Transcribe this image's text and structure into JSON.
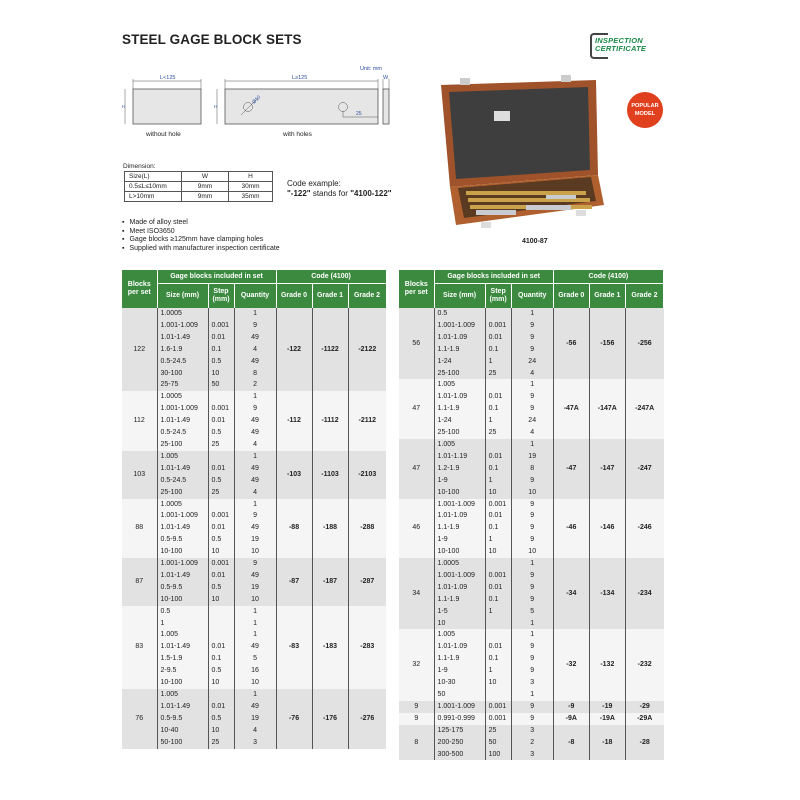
{
  "page": {
    "title": "STEEL GAGE BLOCK SETS",
    "unit": "Unit: mm",
    "diagram": {
      "l_small": "L<125",
      "l_large": "L≥125",
      "h": "H",
      "w": "W",
      "hole_dia": "Ø10",
      "hole_offset": "25",
      "caption_left": "without hole",
      "caption_right": "with holes"
    },
    "dimension": {
      "label": "Dimension:",
      "headers": [
        "Size(L)",
        "W",
        "H"
      ],
      "rows": [
        [
          "0.5≤L≤10mm",
          "9mm",
          "30mm"
        ],
        [
          "L>10mm",
          "9mm",
          "35mm"
        ]
      ]
    },
    "code_example": {
      "line1": "Code example:",
      "code": "\"-122\"",
      "middle": " stands for ",
      "full": "\"4100-122\""
    },
    "features": [
      "Made of alloy steel",
      "Meet ISO3650",
      "Gage blocks ≥125mm have clamping holes",
      "Supplied with manufacturer inspection certificate"
    ],
    "logo": {
      "line1": "INSPECTION",
      "line2": "CERTIFICATE"
    },
    "badge": {
      "line1": "POPULAR",
      "line2": "MODEL"
    },
    "product_model": "4100-87",
    "colors": {
      "header_green": "#3b8a3f",
      "badge_red": "#e0401e",
      "logo_green": "#1a8a4a"
    }
  },
  "table_headers": {
    "blocks": "Blocks per set",
    "included": "Gage blocks included in set",
    "code": "Code (4100)",
    "size": "Size (mm)",
    "step": "Step (mm)",
    "quantity": "Quantity",
    "grade0": "Grade 0",
    "grade1": "Grade 1",
    "grade2": "Grade 2"
  },
  "tables": [
    {
      "sets": [
        {
          "blocks": "122",
          "items": [
            [
              "1.0005",
              "",
              "1"
            ],
            [
              "1.001-1.009",
              "0.001",
              "9"
            ],
            [
              "1.01-1.49",
              "0.01",
              "49"
            ],
            [
              "1.6-1.9",
              "0.1",
              "4"
            ],
            [
              "0.5-24.5",
              "0.5",
              "49"
            ],
            [
              "30-100",
              "10",
              "8"
            ],
            [
              "25-75",
              "50",
              "2"
            ]
          ],
          "codes": [
            "-122",
            "-1122",
            "-2122"
          ]
        },
        {
          "blocks": "112",
          "items": [
            [
              "1.0005",
              "",
              "1"
            ],
            [
              "1.001-1.009",
              "0.001",
              "9"
            ],
            [
              "1.01-1.49",
              "0.01",
              "49"
            ],
            [
              "0.5-24.5",
              "0.5",
              "49"
            ],
            [
              "25-100",
              "25",
              "4"
            ]
          ],
          "codes": [
            "-112",
            "-1112",
            "-2112"
          ]
        },
        {
          "blocks": "103",
          "items": [
            [
              "1.005",
              "",
              "1"
            ],
            [
              "1.01-1.49",
              "0.01",
              "49"
            ],
            [
              "0.5-24.5",
              "0.5",
              "49"
            ],
            [
              "25-100",
              "25",
              "4"
            ]
          ],
          "codes": [
            "-103",
            "-1103",
            "-2103"
          ]
        },
        {
          "blocks": "88",
          "items": [
            [
              "1.0005",
              "",
              "1"
            ],
            [
              "1.001-1.009",
              "0.001",
              "9"
            ],
            [
              "1.01-1.49",
              "0.01",
              "49"
            ],
            [
              "0.5-9.5",
              "0.5",
              "19"
            ],
            [
              "10-100",
              "10",
              "10"
            ]
          ],
          "codes": [
            "-88",
            "-188",
            "-288"
          ]
        },
        {
          "blocks": "87",
          "items": [
            [
              "1.001-1.009",
              "0.001",
              "9"
            ],
            [
              "1.01-1.49",
              "0.01",
              "49"
            ],
            [
              "0.5-9.5",
              "0.5",
              "19"
            ],
            [
              "10-100",
              "10",
              "10"
            ]
          ],
          "codes": [
            "-87",
            "-187",
            "-287"
          ]
        },
        {
          "blocks": "83",
          "items": [
            [
              "0.5",
              "",
              "1"
            ],
            [
              "1",
              "",
              "1"
            ],
            [
              "1.005",
              "",
              "1"
            ],
            [
              "1.01-1.49",
              "0.01",
              "49"
            ],
            [
              "1.5-1.9",
              "0.1",
              "5"
            ],
            [
              "2-9.5",
              "0.5",
              "16"
            ],
            [
              "10-100",
              "10",
              "10"
            ]
          ],
          "codes": [
            "-83",
            "-183",
            "-283"
          ]
        },
        {
          "blocks": "76",
          "items": [
            [
              "1.005",
              "",
              "1"
            ],
            [
              "1.01-1.49",
              "0.01",
              "49"
            ],
            [
              "0.5-9.5",
              "0.5",
              "19"
            ],
            [
              "10-40",
              "10",
              "4"
            ],
            [
              "50-100",
              "25",
              "3"
            ]
          ],
          "codes": [
            "-76",
            "-176",
            "-276"
          ]
        }
      ]
    },
    {
      "sets": [
        {
          "blocks": "56",
          "items": [
            [
              "0.5",
              "",
              "1"
            ],
            [
              "1.001-1.009",
              "0.001",
              "9"
            ],
            [
              "1.01-1.09",
              "0.01",
              "9"
            ],
            [
              "1.1-1.9",
              "0.1",
              "9"
            ],
            [
              "1-24",
              "1",
              "24"
            ],
            [
              "25-100",
              "25",
              "4"
            ]
          ],
          "codes": [
            "-56",
            "-156",
            "-256"
          ]
        },
        {
          "blocks": "47",
          "items": [
            [
              "1.005",
              "",
              "1"
            ],
            [
              "1.01-1.09",
              "0.01",
              "9"
            ],
            [
              "1.1-1.9",
              "0.1",
              "9"
            ],
            [
              "1-24",
              "1",
              "24"
            ],
            [
              "25-100",
              "25",
              "4"
            ]
          ],
          "codes": [
            "-47A",
            "-147A",
            "-247A"
          ]
        },
        {
          "blocks": "47",
          "items": [
            [
              "1.005",
              "",
              "1"
            ],
            [
              "1.01-1.19",
              "0.01",
              "19"
            ],
            [
              "1.2-1.9",
              "0.1",
              "8"
            ],
            [
              "1-9",
              "1",
              "9"
            ],
            [
              "10-100",
              "10",
              "10"
            ]
          ],
          "codes": [
            "-47",
            "-147",
            "-247"
          ]
        },
        {
          "blocks": "46",
          "items": [
            [
              "1.001-1.009",
              "0.001",
              "9"
            ],
            [
              "1.01-1.09",
              "0.01",
              "9"
            ],
            [
              "1.1-1.9",
              "0.1",
              "9"
            ],
            [
              "1-9",
              "1",
              "9"
            ],
            [
              "10-100",
              "10",
              "10"
            ]
          ],
          "codes": [
            "-46",
            "-146",
            "-246"
          ]
        },
        {
          "blocks": "34",
          "items": [
            [
              "1.0005",
              "",
              "1"
            ],
            [
              "1.001-1.009",
              "0.001",
              "9"
            ],
            [
              "1.01-1.09",
              "0.01",
              "9"
            ],
            [
              "1.1-1.9",
              "0.1",
              "9"
            ],
            [
              "1-5",
              "1",
              "5"
            ],
            [
              "10",
              "",
              "1"
            ]
          ],
          "codes": [
            "-34",
            "-134",
            "-234"
          ]
        },
        {
          "blocks": "32",
          "items": [
            [
              "1.005",
              "",
              "1"
            ],
            [
              "1.01-1.09",
              "0.01",
              "9"
            ],
            [
              "1.1-1.9",
              "0.1",
              "9"
            ],
            [
              "1-9",
              "1",
              "9"
            ],
            [
              "10-30",
              "10",
              "3"
            ],
            [
              "50",
              "",
              "1"
            ]
          ],
          "codes": [
            "-32",
            "-132",
            "-232"
          ]
        },
        {
          "blocks": "9",
          "items": [
            [
              "1.001-1.009",
              "0.001",
              "9"
            ]
          ],
          "codes": [
            "-9",
            "-19",
            "-29"
          ]
        },
        {
          "blocks": "9",
          "items": [
            [
              "0.991-0.999",
              "0.001",
              "9"
            ]
          ],
          "codes": [
            "-9A",
            "-19A",
            "-29A"
          ]
        },
        {
          "blocks": "8",
          "items": [
            [
              "125-175",
              "25",
              "3"
            ],
            [
              "200-250",
              "50",
              "2"
            ],
            [
              "300-500",
              "100",
              "3"
            ]
          ],
          "codes": [
            "-8",
            "-18",
            "-28"
          ]
        }
      ]
    }
  ]
}
